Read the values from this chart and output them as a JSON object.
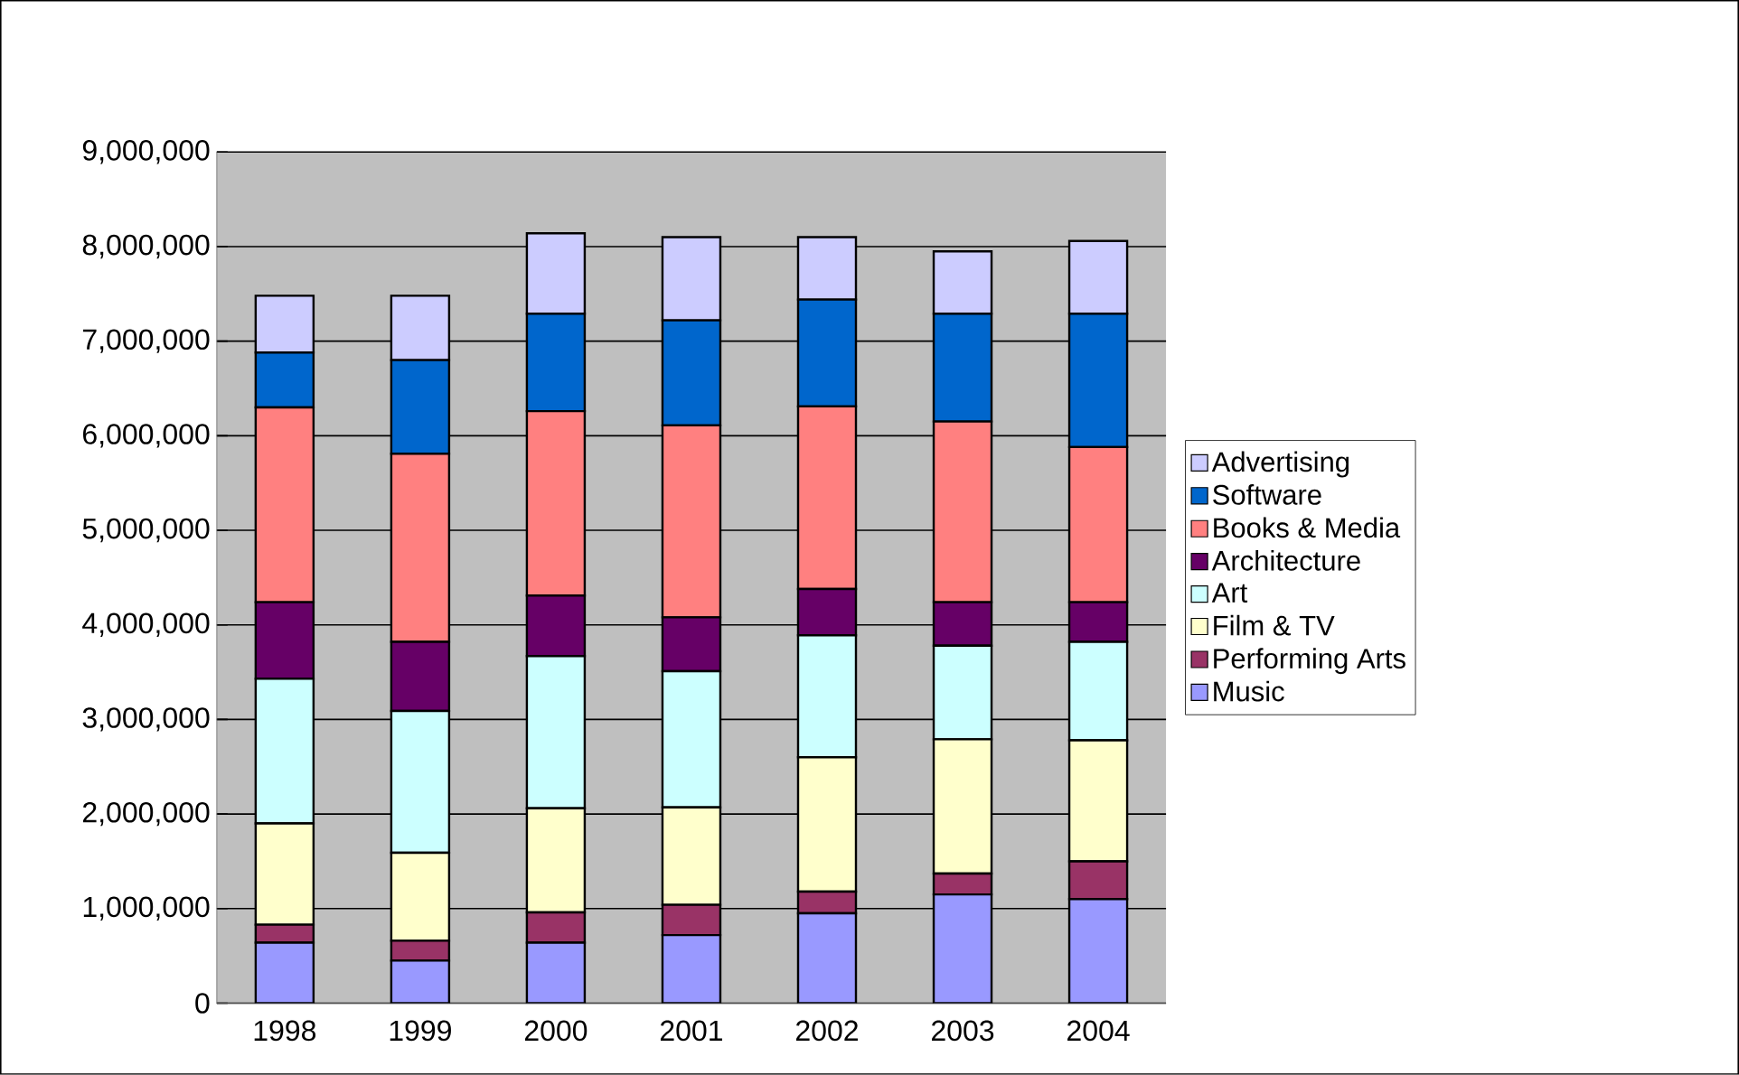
{
  "chart_data": {
    "type": "bar",
    "stacked": true,
    "categories": [
      "1998",
      "1999",
      "2000",
      "2001",
      "2002",
      "2003",
      "2004"
    ],
    "series": [
      {
        "name": "Music",
        "color": "#9999ff",
        "values": [
          640000,
          450000,
          640000,
          720000,
          950000,
          1150000,
          1100000
        ]
      },
      {
        "name": "Performing Arts",
        "color": "#993366",
        "values": [
          190000,
          210000,
          320000,
          320000,
          230000,
          220000,
          400000
        ]
      },
      {
        "name": "Film & TV",
        "color": "#ffffcc",
        "values": [
          1070000,
          930000,
          1100000,
          1030000,
          1420000,
          1420000,
          1280000
        ]
      },
      {
        "name": "Art",
        "color": "#ccffff",
        "values": [
          1530000,
          1500000,
          1610000,
          1440000,
          1290000,
          990000,
          1040000
        ]
      },
      {
        "name": "Architecture",
        "color": "#660066",
        "values": [
          810000,
          730000,
          640000,
          570000,
          490000,
          460000,
          420000
        ]
      },
      {
        "name": "Books & Media",
        "color": "#ff8080",
        "values": [
          2060000,
          1990000,
          1950000,
          2030000,
          1930000,
          1910000,
          1640000
        ]
      },
      {
        "name": "Software",
        "color": "#0066cc",
        "values": [
          580000,
          990000,
          1030000,
          1110000,
          1130000,
          1140000,
          1410000
        ]
      },
      {
        "name": "Advertising",
        "color": "#ccccff",
        "values": [
          600000,
          680000,
          850000,
          880000,
          660000,
          660000,
          770000
        ]
      }
    ],
    "ylim": [
      0,
      9000000
    ],
    "yticks": [
      {
        "value": 0,
        "label": "0"
      },
      {
        "value": 1000000,
        "label": "1,000,000"
      },
      {
        "value": 2000000,
        "label": "2,000,000"
      },
      {
        "value": 3000000,
        "label": "3,000,000"
      },
      {
        "value": 4000000,
        "label": "4,000,000"
      },
      {
        "value": 5000000,
        "label": "5,000,000"
      },
      {
        "value": 6000000,
        "label": "6,000,000"
      },
      {
        "value": 7000000,
        "label": "7,000,000"
      },
      {
        "value": 8000000,
        "label": "8,000,000"
      },
      {
        "value": 9000000,
        "label": "9,000,000"
      }
    ],
    "grid": "y",
    "legend": "right"
  }
}
